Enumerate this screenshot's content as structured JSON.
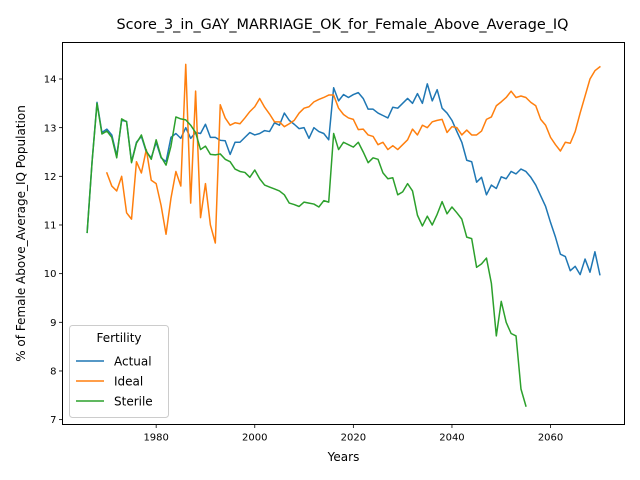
{
  "chart_data": {
    "type": "line",
    "title": "Score_3_in_GAY_MARRIAGE_OK_for_Female_Above_Average_IQ",
    "xlabel": "Years",
    "ylabel": "% of Female Above_Average_IQ Population",
    "xlim": [
      1961,
      2075
    ],
    "ylim": [
      6.9,
      14.75
    ],
    "xticks": [
      1980,
      2000,
      2020,
      2040,
      2060
    ],
    "yticks": [
      7,
      8,
      9,
      10,
      11,
      12,
      13,
      14
    ],
    "grid": false,
    "legend": {
      "title": "Fertility",
      "placement": "lower-left"
    },
    "series": [
      {
        "name": "Actual",
        "color": "#1f77b4",
        "points": [
          [
            1966,
            10.85
          ],
          [
            1967,
            12.3
          ],
          [
            1968,
            13.52
          ],
          [
            1969,
            12.9
          ],
          [
            1970,
            12.97
          ],
          [
            1971,
            12.85
          ],
          [
            1972,
            12.42
          ],
          [
            1973,
            13.15
          ],
          [
            1974,
            13.13
          ],
          [
            1975,
            12.3
          ],
          [
            1976,
            12.7
          ],
          [
            1977,
            12.82
          ],
          [
            1978,
            12.5
          ],
          [
            1979,
            12.38
          ],
          [
            1980,
            12.7
          ],
          [
            1981,
            12.38
          ],
          [
            1982,
            12.3
          ],
          [
            1983,
            12.8
          ],
          [
            1984,
            12.88
          ],
          [
            1985,
            12.78
          ],
          [
            1986,
            13.0
          ],
          [
            1987,
            12.78
          ],
          [
            1988,
            12.9
          ],
          [
            1989,
            12.88
          ],
          [
            1990,
            13.07
          ],
          [
            1991,
            12.8
          ],
          [
            1992,
            12.8
          ],
          [
            1993,
            12.74
          ],
          [
            1994,
            12.73
          ],
          [
            1995,
            12.45
          ],
          [
            1996,
            12.7
          ],
          [
            1997,
            12.7
          ],
          [
            1998,
            12.8
          ],
          [
            1999,
            12.9
          ],
          [
            2000,
            12.85
          ],
          [
            2001,
            12.88
          ],
          [
            2002,
            12.94
          ],
          [
            2003,
            12.92
          ],
          [
            2004,
            13.1
          ],
          [
            2005,
            13.05
          ],
          [
            2006,
            13.3
          ],
          [
            2007,
            13.15
          ],
          [
            2008,
            13.07
          ],
          [
            2009,
            12.98
          ],
          [
            2010,
            13.0
          ],
          [
            2011,
            12.78
          ],
          [
            2012,
            13.0
          ],
          [
            2013,
            12.92
          ],
          [
            2014,
            12.88
          ],
          [
            2015,
            12.75
          ],
          [
            2016,
            13.82
          ],
          [
            2017,
            13.55
          ],
          [
            2018,
            13.68
          ],
          [
            2019,
            13.62
          ],
          [
            2020,
            13.68
          ],
          [
            2021,
            13.72
          ],
          [
            2022,
            13.6
          ],
          [
            2023,
            13.38
          ],
          [
            2024,
            13.38
          ],
          [
            2025,
            13.3
          ],
          [
            2026,
            13.25
          ],
          [
            2027,
            13.2
          ],
          [
            2028,
            13.42
          ],
          [
            2029,
            13.4
          ],
          [
            2030,
            13.5
          ],
          [
            2031,
            13.6
          ],
          [
            2032,
            13.5
          ],
          [
            2033,
            13.7
          ],
          [
            2034,
            13.5
          ],
          [
            2035,
            13.9
          ],
          [
            2036,
            13.55
          ],
          [
            2037,
            13.78
          ],
          [
            2038,
            13.4
          ],
          [
            2039,
            13.3
          ],
          [
            2040,
            13.15
          ],
          [
            2041,
            12.92
          ],
          [
            2042,
            12.7
          ],
          [
            2043,
            12.33
          ],
          [
            2044,
            12.3
          ],
          [
            2045,
            11.88
          ],
          [
            2046,
            11.98
          ],
          [
            2047,
            11.62
          ],
          [
            2048,
            11.82
          ],
          [
            2049,
            11.75
          ],
          [
            2050,
            11.99
          ],
          [
            2051,
            11.95
          ],
          [
            2052,
            12.1
          ],
          [
            2053,
            12.05
          ],
          [
            2054,
            12.15
          ],
          [
            2055,
            12.1
          ],
          [
            2056,
            11.98
          ],
          [
            2057,
            11.82
          ],
          [
            2058,
            11.6
          ],
          [
            2059,
            11.38
          ],
          [
            2060,
            11.05
          ],
          [
            2061,
            10.75
          ],
          [
            2062,
            10.4
          ],
          [
            2063,
            10.35
          ],
          [
            2064,
            10.06
          ],
          [
            2065,
            10.15
          ],
          [
            2066,
            9.98
          ],
          [
            2067,
            10.3
          ],
          [
            2068,
            10.03
          ],
          [
            2069,
            10.45
          ],
          [
            2070,
            9.98
          ]
        ]
      },
      {
        "name": "Ideal",
        "color": "#ff7f0e",
        "points": [
          [
            1970,
            12.07
          ],
          [
            1971,
            11.8
          ],
          [
            1972,
            11.7
          ],
          [
            1973,
            12.0
          ],
          [
            1974,
            11.25
          ],
          [
            1975,
            11.12
          ],
          [
            1976,
            12.3
          ],
          [
            1977,
            12.07
          ],
          [
            1978,
            12.55
          ],
          [
            1979,
            11.92
          ],
          [
            1980,
            11.85
          ],
          [
            1981,
            11.4
          ],
          [
            1982,
            10.81
          ],
          [
            1983,
            11.55
          ],
          [
            1984,
            12.1
          ],
          [
            1985,
            11.8
          ],
          [
            1986,
            14.3
          ],
          [
            1987,
            11.45
          ],
          [
            1988,
            13.75
          ],
          [
            1989,
            11.15
          ],
          [
            1990,
            11.85
          ],
          [
            1991,
            11.0
          ],
          [
            1992,
            10.63
          ],
          [
            1993,
            13.47
          ],
          [
            1994,
            13.2
          ],
          [
            1995,
            13.05
          ],
          [
            1996,
            13.1
          ],
          [
            1997,
            13.08
          ],
          [
            1998,
            13.2
          ],
          [
            1999,
            13.33
          ],
          [
            2000,
            13.43
          ],
          [
            2001,
            13.6
          ],
          [
            2002,
            13.42
          ],
          [
            2003,
            13.28
          ],
          [
            2004,
            13.12
          ],
          [
            2005,
            13.12
          ],
          [
            2006,
            13.02
          ],
          [
            2007,
            13.08
          ],
          [
            2008,
            13.15
          ],
          [
            2009,
            13.3
          ],
          [
            2010,
            13.4
          ],
          [
            2011,
            13.43
          ],
          [
            2012,
            13.53
          ],
          [
            2013,
            13.58
          ],
          [
            2014,
            13.62
          ],
          [
            2015,
            13.67
          ],
          [
            2016,
            13.67
          ],
          [
            2017,
            13.4
          ],
          [
            2018,
            13.27
          ],
          [
            2019,
            13.2
          ],
          [
            2020,
            13.17
          ],
          [
            2021,
            12.96
          ],
          [
            2022,
            12.97
          ],
          [
            2023,
            12.85
          ],
          [
            2024,
            12.82
          ],
          [
            2025,
            12.65
          ],
          [
            2026,
            12.7
          ],
          [
            2027,
            12.55
          ],
          [
            2028,
            12.63
          ],
          [
            2029,
            12.55
          ],
          [
            2030,
            12.65
          ],
          [
            2031,
            12.75
          ],
          [
            2032,
            12.97
          ],
          [
            2033,
            12.85
          ],
          [
            2034,
            13.05
          ],
          [
            2035,
            13.0
          ],
          [
            2036,
            13.12
          ],
          [
            2037,
            13.15
          ],
          [
            2038,
            13.17
          ],
          [
            2039,
            12.9
          ],
          [
            2040,
            13.02
          ],
          [
            2041,
            13.0
          ],
          [
            2042,
            12.85
          ],
          [
            2043,
            12.95
          ],
          [
            2044,
            12.85
          ],
          [
            2045,
            12.85
          ],
          [
            2046,
            12.93
          ],
          [
            2047,
            13.17
          ],
          [
            2048,
            13.22
          ],
          [
            2049,
            13.45
          ],
          [
            2050,
            13.53
          ],
          [
            2051,
            13.62
          ],
          [
            2052,
            13.75
          ],
          [
            2053,
            13.62
          ],
          [
            2054,
            13.65
          ],
          [
            2055,
            13.62
          ],
          [
            2056,
            13.52
          ],
          [
            2057,
            13.45
          ],
          [
            2058,
            13.17
          ],
          [
            2059,
            13.05
          ],
          [
            2060,
            12.8
          ],
          [
            2061,
            12.65
          ],
          [
            2062,
            12.52
          ],
          [
            2063,
            12.7
          ],
          [
            2064,
            12.68
          ],
          [
            2065,
            12.92
          ],
          [
            2066,
            13.3
          ],
          [
            2067,
            13.65
          ],
          [
            2068,
            14.0
          ],
          [
            2069,
            14.17
          ],
          [
            2070,
            14.25
          ]
        ]
      },
      {
        "name": "Sterile",
        "color": "#2ca02c",
        "points": [
          [
            1966,
            10.85
          ],
          [
            1967,
            12.3
          ],
          [
            1968,
            13.5
          ],
          [
            1969,
            12.87
          ],
          [
            1970,
            12.93
          ],
          [
            1971,
            12.8
          ],
          [
            1972,
            12.38
          ],
          [
            1973,
            13.18
          ],
          [
            1974,
            13.12
          ],
          [
            1975,
            12.28
          ],
          [
            1976,
            12.68
          ],
          [
            1977,
            12.85
          ],
          [
            1978,
            12.52
          ],
          [
            1979,
            12.35
          ],
          [
            1980,
            12.75
          ],
          [
            1981,
            12.4
          ],
          [
            1982,
            12.23
          ],
          [
            1983,
            12.62
          ],
          [
            1984,
            13.22
          ],
          [
            1985,
            13.18
          ],
          [
            1986,
            13.16
          ],
          [
            1987,
            13.05
          ],
          [
            1988,
            12.9
          ],
          [
            1989,
            12.55
          ],
          [
            1990,
            12.62
          ],
          [
            1991,
            12.45
          ],
          [
            1992,
            12.44
          ],
          [
            1993,
            12.46
          ],
          [
            1994,
            12.35
          ],
          [
            1995,
            12.3
          ],
          [
            1996,
            12.15
          ],
          [
            1997,
            12.1
          ],
          [
            1998,
            12.08
          ],
          [
            1999,
            11.98
          ],
          [
            2000,
            12.13
          ],
          [
            2001,
            11.95
          ],
          [
            2002,
            11.82
          ],
          [
            2003,
            11.78
          ],
          [
            2004,
            11.74
          ],
          [
            2005,
            11.7
          ],
          [
            2006,
            11.62
          ],
          [
            2007,
            11.45
          ],
          [
            2008,
            11.42
          ],
          [
            2009,
            11.38
          ],
          [
            2010,
            11.47
          ],
          [
            2011,
            11.45
          ],
          [
            2012,
            11.43
          ],
          [
            2013,
            11.37
          ],
          [
            2014,
            11.5
          ],
          [
            2015,
            11.47
          ],
          [
            2016,
            12.88
          ],
          [
            2017,
            12.55
          ],
          [
            2018,
            12.7
          ],
          [
            2019,
            12.65
          ],
          [
            2020,
            12.6
          ],
          [
            2021,
            12.7
          ],
          [
            2022,
            12.5
          ],
          [
            2023,
            12.28
          ],
          [
            2024,
            12.38
          ],
          [
            2025,
            12.35
          ],
          [
            2026,
            12.07
          ],
          [
            2027,
            11.95
          ],
          [
            2028,
            11.97
          ],
          [
            2029,
            11.62
          ],
          [
            2030,
            11.68
          ],
          [
            2031,
            11.85
          ],
          [
            2032,
            11.7
          ],
          [
            2033,
            11.2
          ],
          [
            2034,
            10.98
          ],
          [
            2035,
            11.18
          ],
          [
            2036,
            11.0
          ],
          [
            2037,
            11.22
          ],
          [
            2038,
            11.48
          ],
          [
            2039,
            11.23
          ],
          [
            2040,
            11.37
          ],
          [
            2041,
            11.25
          ],
          [
            2042,
            11.12
          ],
          [
            2043,
            10.75
          ],
          [
            2044,
            10.72
          ],
          [
            2045,
            10.13
          ],
          [
            2046,
            10.2
          ],
          [
            2047,
            10.32
          ],
          [
            2048,
            9.8
          ],
          [
            2049,
            8.72
          ],
          [
            2050,
            9.43
          ],
          [
            2051,
            9.0
          ],
          [
            2052,
            8.77
          ],
          [
            2053,
            8.72
          ],
          [
            2054,
            7.63
          ],
          [
            2055,
            7.28
          ]
        ]
      }
    ]
  }
}
